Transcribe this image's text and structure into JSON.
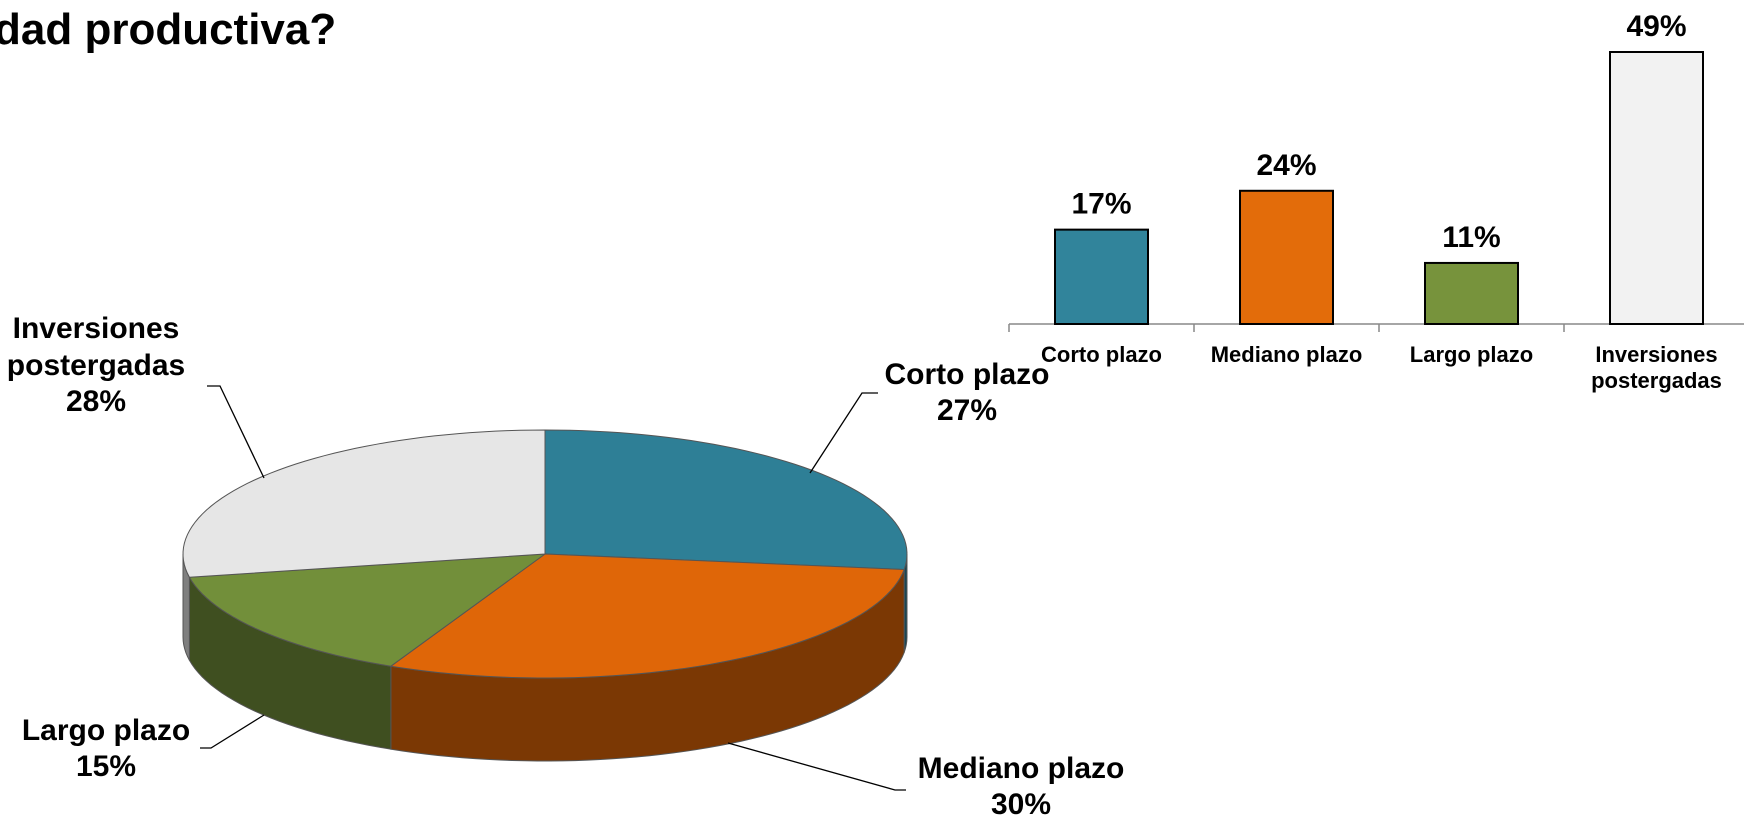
{
  "header": {
    "title": "dad productiva?"
  },
  "chart_data": [
    {
      "type": "pie",
      "categories": [
        "Corto plazo",
        "Mediano plazo",
        "Largo plazo",
        "Inversiones postergadas"
      ],
      "values": [
        27,
        30,
        15,
        28
      ],
      "value_labels": [
        "27%",
        "30%",
        "15%",
        "28%"
      ],
      "colors": [
        "#2e7f96",
        "#df6608",
        "#728f3a",
        "#e6e6e6"
      ]
    },
    {
      "type": "bar",
      "categories": [
        "Corto plazo",
        "Mediano plazo",
        "Largo plazo",
        "Inversiones postergadas"
      ],
      "values": [
        17,
        24,
        11,
        49
      ],
      "value_labels": [
        "17%",
        "24%",
        "11%",
        "49%"
      ],
      "colors": [
        "#31849b",
        "#e36c0a",
        "#77933c",
        "#f2f2f2"
      ]
    }
  ]
}
